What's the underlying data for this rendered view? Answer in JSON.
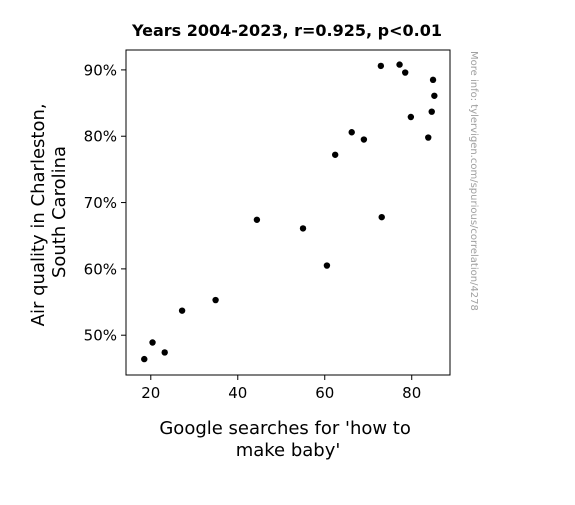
{
  "chart_data": {
    "type": "scatter",
    "title": "Years 2004-2023, r=0.925, p<0.01",
    "xlabel": [
      "Google searches for 'how to",
      "make baby'"
    ],
    "ylabel": [
      "Air quality in Charleston,",
      "South Carolina"
    ],
    "xlim": [
      14.3,
      88.8
    ],
    "ylim": [
      44.0,
      93.0
    ],
    "x_ticks": [
      {
        "value": 20,
        "label": "20"
      },
      {
        "value": 40,
        "label": "40"
      },
      {
        "value": 60,
        "label": "60"
      },
      {
        "value": 80,
        "label": "80"
      }
    ],
    "y_ticks": [
      {
        "value": 50,
        "label": "50%"
      },
      {
        "value": 60,
        "label": "60%"
      },
      {
        "value": 70,
        "label": "70%"
      },
      {
        "value": 80,
        "label": "80%"
      },
      {
        "value": 90,
        "label": "90%"
      }
    ],
    "grid": false,
    "marker_color": "#000000",
    "points": [
      {
        "x": 18.5,
        "y": 46.4
      },
      {
        "x": 20.4,
        "y": 48.9
      },
      {
        "x": 23.2,
        "y": 47.4
      },
      {
        "x": 27.2,
        "y": 53.7
      },
      {
        "x": 34.9,
        "y": 55.3
      },
      {
        "x": 44.4,
        "y": 67.4
      },
      {
        "x": 55.0,
        "y": 66.1
      },
      {
        "x": 60.5,
        "y": 60.5
      },
      {
        "x": 62.4,
        "y": 77.2
      },
      {
        "x": 66.2,
        "y": 80.6
      },
      {
        "x": 69.0,
        "y": 79.5
      },
      {
        "x": 72.9,
        "y": 90.6
      },
      {
        "x": 73.1,
        "y": 67.8
      },
      {
        "x": 77.2,
        "y": 90.8
      },
      {
        "x": 78.5,
        "y": 89.6
      },
      {
        "x": 79.8,
        "y": 82.9
      },
      {
        "x": 83.8,
        "y": 79.8
      },
      {
        "x": 84.6,
        "y": 83.7
      },
      {
        "x": 84.9,
        "y": 88.5
      },
      {
        "x": 85.2,
        "y": 86.1
      }
    ]
  },
  "watermark": "More info: tylervigen.com/spurious/correlation/4278"
}
